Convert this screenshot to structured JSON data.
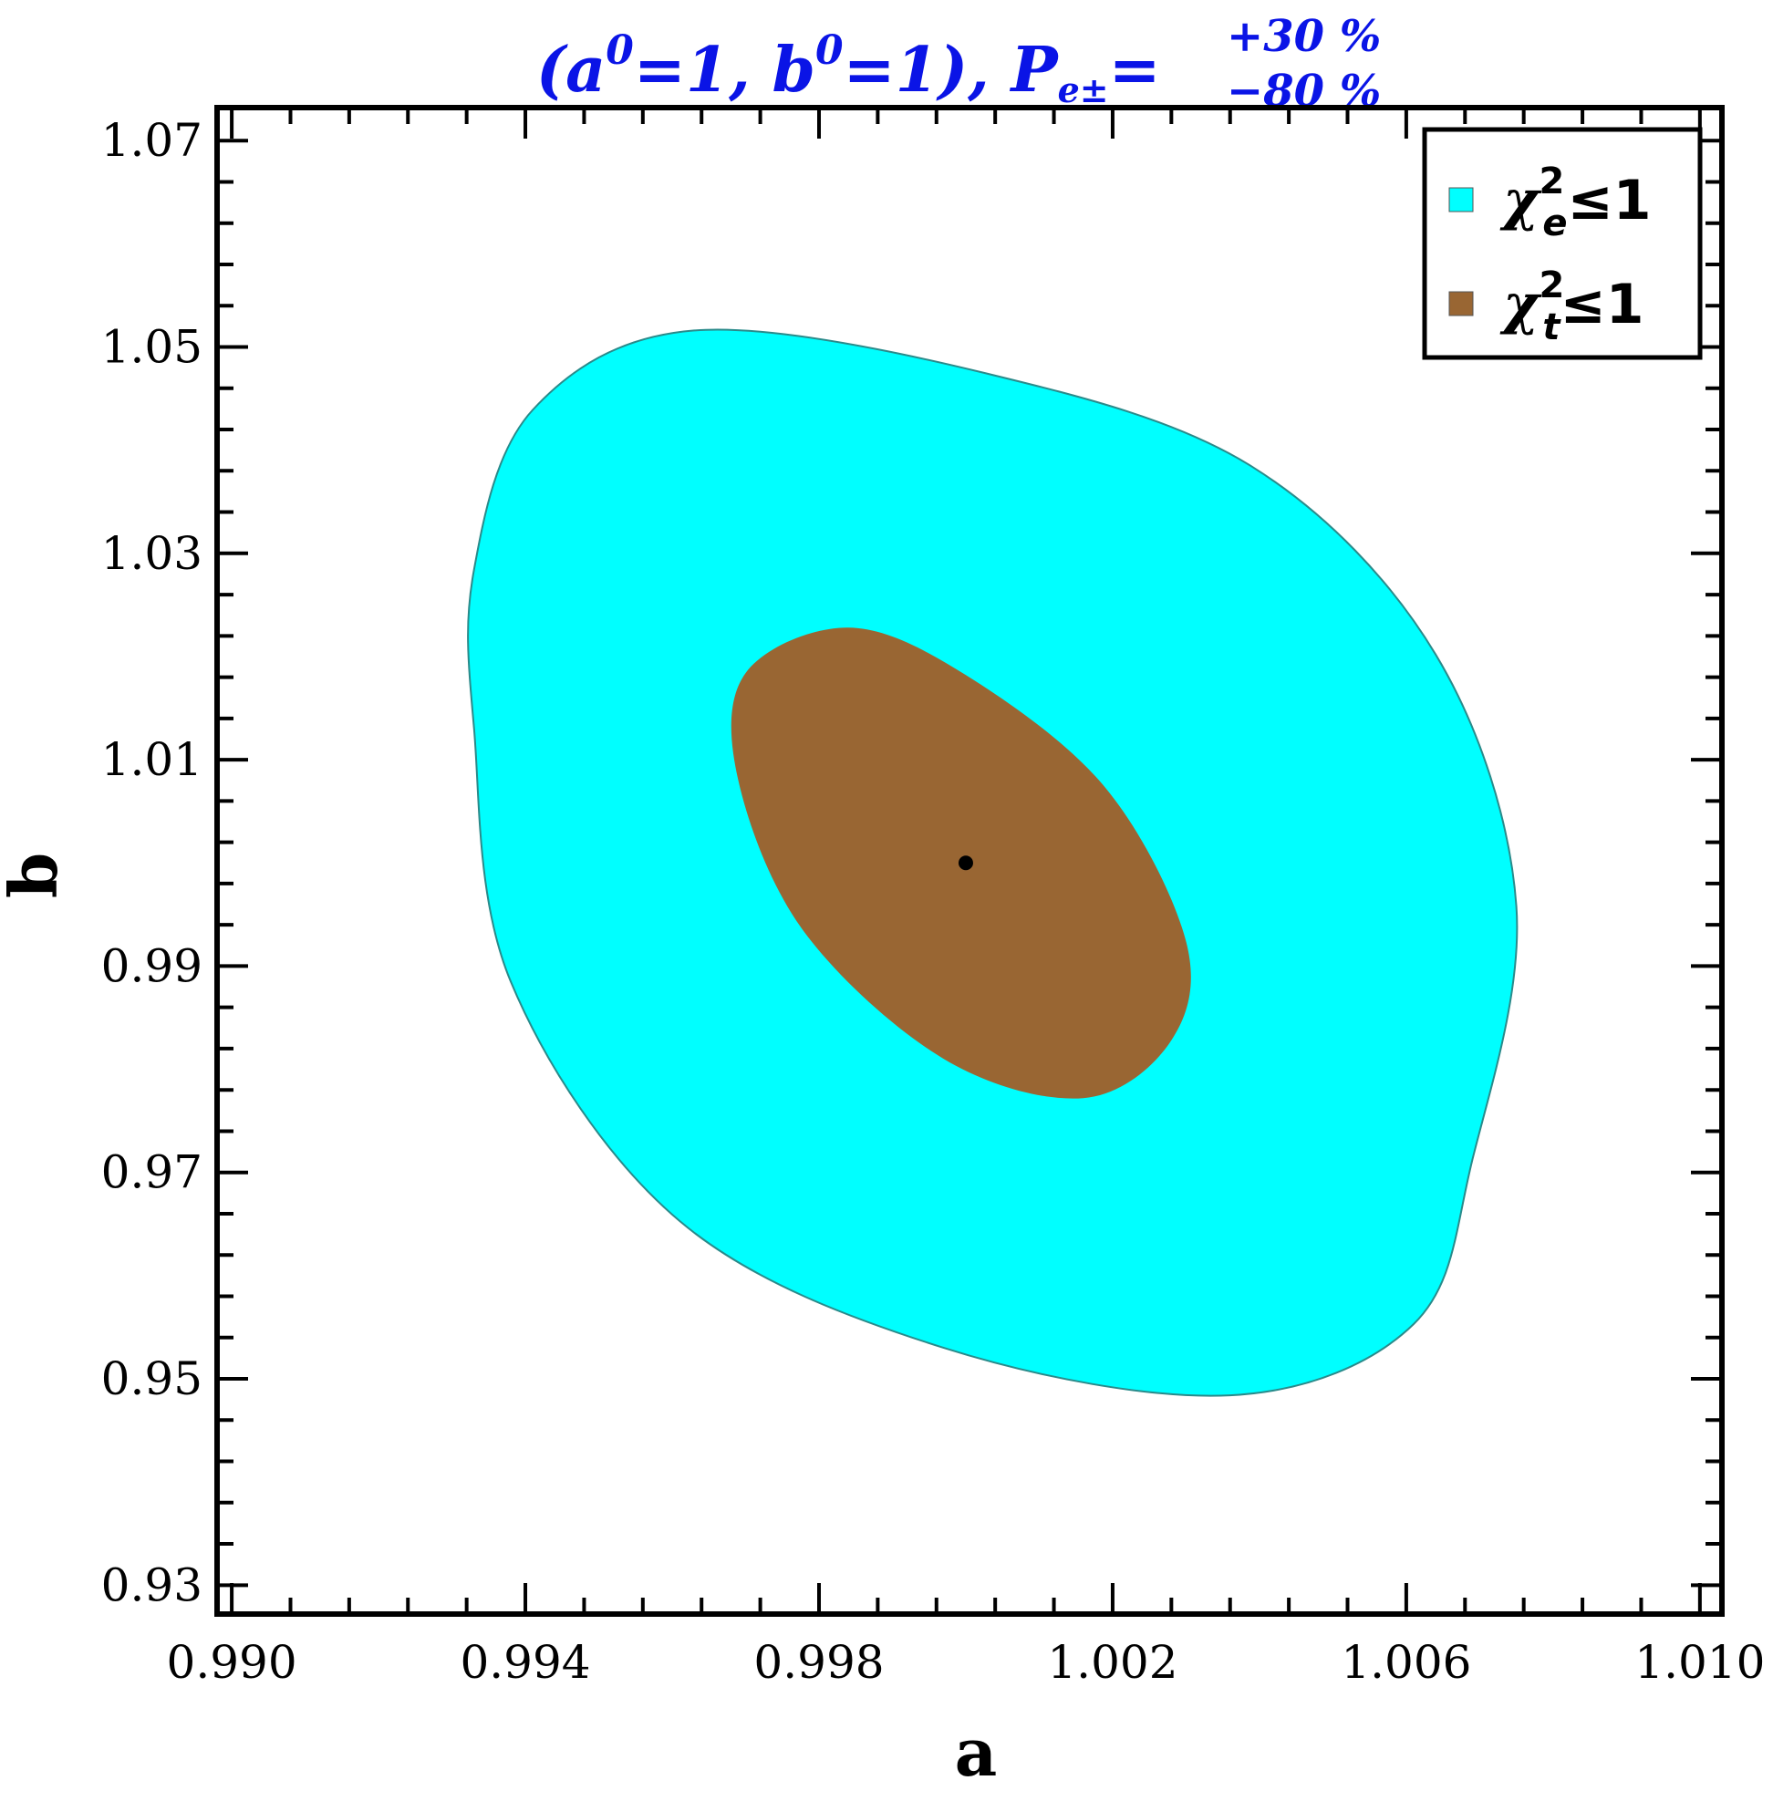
{
  "chart_data": {
    "type": "contour",
    "title": {
      "part1": "(a",
      "sup1": "0",
      "part2": "=1,  b",
      "sup2": "0",
      "part3": "=1),  P",
      "sub": "e±",
      "eq": "=",
      "upper": "+30 %",
      "lower": "−80 %"
    },
    "xlabel": "a",
    "ylabel": "b",
    "xlim": [
      0.9898,
      1.0103
    ],
    "ylim": [
      0.9272,
      1.0732
    ],
    "xticks": [
      "0.990",
      "0.994",
      "0.998",
      "1.002",
      "1.006",
      "1.010"
    ],
    "yticks": [
      "0.93",
      "0.95",
      "0.97",
      "0.99",
      "1.01",
      "1.03",
      "1.05",
      "1.07"
    ],
    "colors": {
      "chi_e": "#00ffff",
      "chi_t": "#996633",
      "title": "#0a14e6",
      "center": "#000000"
    },
    "legend": {
      "position": "top-right",
      "entries": [
        {
          "symbol": "χ",
          "sup": "2",
          "sub": "e",
          "rel": "≤1",
          "color": "#00ffff"
        },
        {
          "symbol": "χ",
          "sup": "2",
          "sub": "t",
          "rel": "≤1",
          "color": "#996633"
        }
      ]
    },
    "regions": [
      {
        "name": "chi_e",
        "boundary": [
          [
            0.9963,
            1.0516
          ],
          [
            1.0003,
            1.0474
          ],
          [
            1.0039,
            1.0384
          ],
          [
            1.0064,
            1.0202
          ],
          [
            1.0075,
            0.9958
          ],
          [
            1.0069,
            0.9712
          ],
          [
            1.0061,
            0.9553
          ],
          [
            1.0036,
            0.9484
          ],
          [
            0.9997,
            0.953
          ],
          [
            0.9961,
            0.9653
          ],
          [
            0.9938,
            0.9885
          ],
          [
            0.9933,
            1.0131
          ],
          [
            0.9933,
            1.0284
          ],
          [
            0.9941,
            1.0439
          ]
        ]
      },
      {
        "name": "chi_t",
        "boundary": [
          [
            0.9984,
            1.0228
          ],
          [
            1.0,
            1.0182
          ],
          [
            1.0019,
            1.0073
          ],
          [
            1.003,
            0.9924
          ],
          [
            1.0028,
            0.9828
          ],
          [
            1.0016,
            0.9772
          ],
          [
            0.9997,
            0.981
          ],
          [
            0.9978,
            0.9933
          ],
          [
            0.9969,
            1.008
          ],
          [
            0.997,
            1.0184
          ]
        ]
      }
    ],
    "center_point": {
      "a": 1.0,
      "b": 1.0
    }
  }
}
